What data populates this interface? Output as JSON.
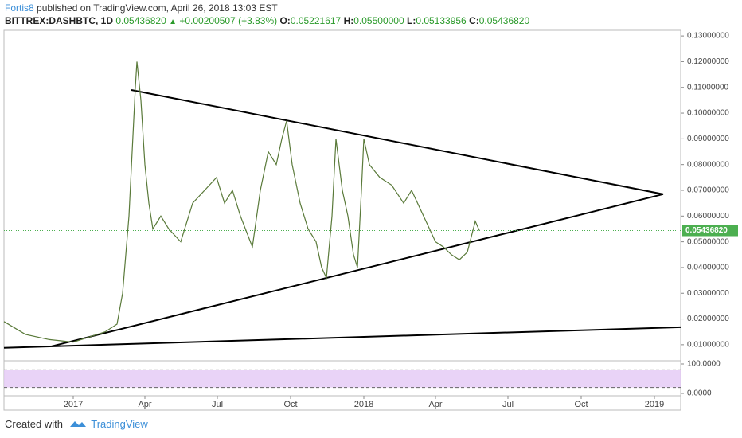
{
  "header": {
    "author": "Fortis8",
    "published": "published on TradingView.com, April 26, 2018 13:03 EST",
    "symbol": "BITTREX:DASHBTC, 1D",
    "price": "0.05436820",
    "change": "+0.00200507 (+3.83%)",
    "ohlc": [
      {
        "key": "O:",
        "value": "0.05221617"
      },
      {
        "key": "H:",
        "value": "0.05500000"
      },
      {
        "key": "L:",
        "value": "0.05133956"
      },
      {
        "key": "C:",
        "value": "0.05436820"
      }
    ]
  },
  "footer": {
    "created": "Created with",
    "brand": "TradingView"
  },
  "chart_data": {
    "type": "line",
    "x": [
      -87,
      -60,
      -30,
      0,
      20,
      40,
      55,
      62,
      70,
      78,
      80,
      85,
      90,
      95,
      100,
      110,
      120,
      135,
      150,
      165,
      180,
      190,
      200,
      210,
      225,
      235,
      245,
      255,
      262,
      268,
      275,
      285,
      295,
      305,
      312,
      318,
      325,
      330,
      338,
      345,
      352,
      357,
      362,
      365,
      372,
      385,
      400,
      415,
      425,
      440,
      455,
      465,
      475,
      485,
      495,
      505,
      510
    ],
    "series": [
      {
        "name": "DASHBTC",
        "color": "#5a7a3a",
        "values": [
          0.019,
          0.014,
          0.012,
          0.011,
          0.013,
          0.015,
          0.018,
          0.03,
          0.06,
          0.11,
          0.12,
          0.105,
          0.08,
          0.065,
          0.055,
          0.06,
          0.055,
          0.05,
          0.065,
          0.07,
          0.075,
          0.065,
          0.07,
          0.06,
          0.048,
          0.07,
          0.085,
          0.08,
          0.09,
          0.097,
          0.08,
          0.065,
          0.055,
          0.05,
          0.04,
          0.036,
          0.06,
          0.09,
          0.07,
          0.06,
          0.045,
          0.04,
          0.07,
          0.09,
          0.08,
          0.075,
          0.072,
          0.065,
          0.07,
          0.06,
          0.05,
          0.048,
          0.045,
          0.043,
          0.046,
          0.058,
          0.0544
        ]
      }
    ],
    "xlim": [
      -87,
      763
    ],
    "xticks": [
      {
        "value": 0,
        "label": "2017"
      },
      {
        "value": 90,
        "label": "Apr"
      },
      {
        "value": 181,
        "label": "Jul"
      },
      {
        "value": 273,
        "label": "Oct"
      },
      {
        "value": 365,
        "label": "2018"
      },
      {
        "value": 455,
        "label": "Apr"
      },
      {
        "value": 546,
        "label": "Jul"
      },
      {
        "value": 638,
        "label": "Oct"
      },
      {
        "value": 730,
        "label": "2019"
      }
    ],
    "ylim": [
      0.0047,
      0.1322
    ],
    "yticks": [
      {
        "value": 0.01,
        "label": "0.01000000"
      },
      {
        "value": 0.02,
        "label": "0.02000000"
      },
      {
        "value": 0.03,
        "label": "0.03000000"
      },
      {
        "value": 0.04,
        "label": "0.04000000"
      },
      {
        "value": 0.05,
        "label": "0.05000000"
      },
      {
        "value": 0.06,
        "label": "0.06000000"
      },
      {
        "value": 0.07,
        "label": "0.07000000"
      },
      {
        "value": 0.08,
        "label": "0.08000000"
      },
      {
        "value": 0.09,
        "label": "0.09000000"
      },
      {
        "value": 0.1,
        "label": "0.10000000"
      },
      {
        "value": 0.11,
        "label": "0.11000000"
      },
      {
        "value": 0.12,
        "label": "0.12000000"
      },
      {
        "value": 0.13,
        "label": "0.13000000"
      }
    ],
    "last_price": {
      "value": 0.0543682,
      "label": "0.05436820",
      "color": "#4caf50"
    },
    "trendlines": [
      {
        "x": [
          73,
          741
        ],
        "y": [
          0.109,
          0.0685
        ]
      },
      {
        "x": [
          -27,
          741
        ],
        "y": [
          0.0094,
          0.0685
        ]
      },
      {
        "x": [
          -87,
          763
        ],
        "y": [
          0.0088,
          0.0168
        ]
      }
    ],
    "oscillator": {
      "ylim": [
        0,
        100
      ],
      "yticks": [
        {
          "value": 100,
          "label": "100.0000"
        },
        {
          "value": 0,
          "label": "0.0000"
        }
      ],
      "bands": [
        80,
        20
      ],
      "band_color": "#e3c8f5"
    }
  }
}
